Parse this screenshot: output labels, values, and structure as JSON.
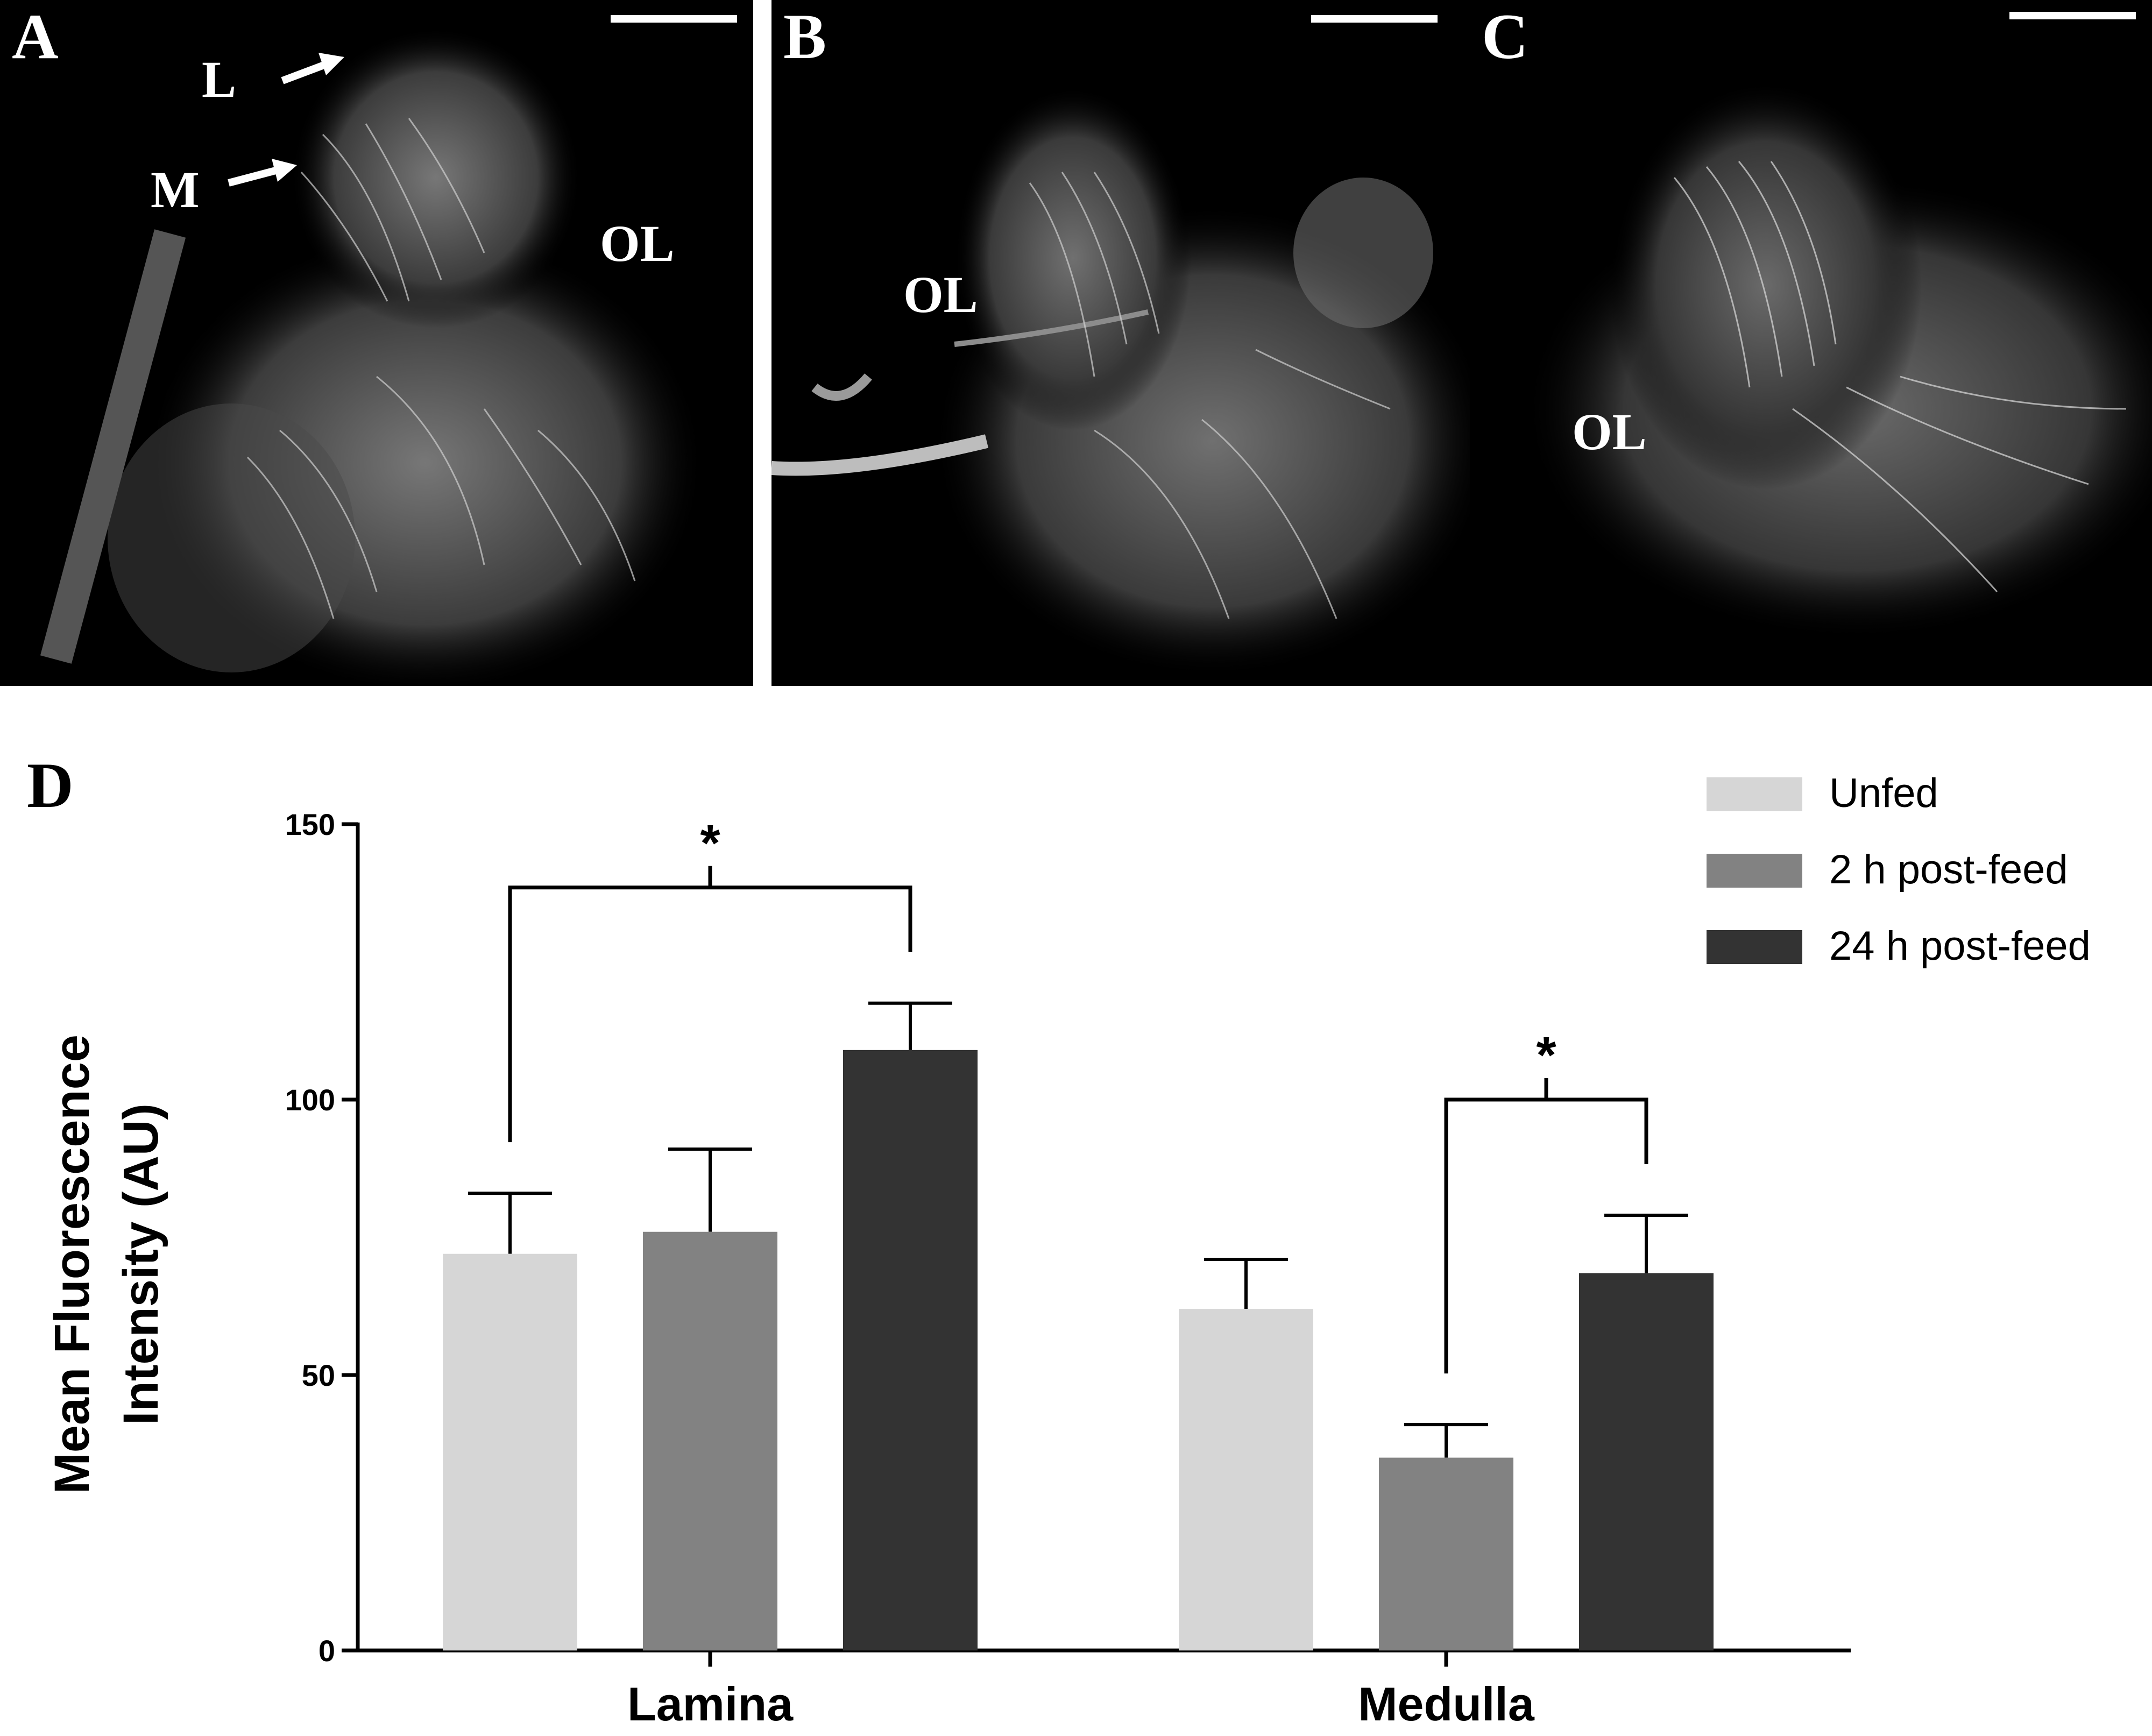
{
  "panels": [
    {
      "letter": "A",
      "labels": {
        "L": "L",
        "M": "M",
        "OL": "OL"
      }
    },
    {
      "letter": "B",
      "labels": {
        "OL": "OL"
      }
    },
    {
      "letter": "C",
      "labels": {
        "OL": "OL"
      }
    }
  ],
  "chart_panel_letter": "D",
  "colors": {
    "unfed": "#d6d6d6",
    "post2h": "#828282",
    "post24h": "#333333"
  },
  "chart_data": {
    "type": "bar",
    "categories": [
      "Lamina",
      "Medulla"
    ],
    "ylabel": "Mean Fluorescence Intensity (AU)",
    "ylabel_lines": [
      "Mean Fluorescence",
      "Intensity (AU)"
    ],
    "ylim": [
      0,
      150
    ],
    "yticks": [
      0,
      50,
      100,
      150
    ],
    "ytick_labels": [
      "0",
      "50",
      "100",
      "150"
    ],
    "legend_placement": "top-right",
    "series": [
      {
        "name": "Unfed",
        "values": [
          72,
          62
        ],
        "errors": [
          11,
          9
        ]
      },
      {
        "name": "2 h post-feed",
        "values": [
          76,
          35
        ],
        "errors": [
          15,
          6
        ]
      },
      {
        "name": "24 h post-feed",
        "values": [
          109,
          68.5
        ],
        "errors": [
          8.5,
          10.5
        ]
      }
    ],
    "significance": [
      {
        "category": 0,
        "from_series": 0,
        "to_series": 2,
        "label": "*"
      },
      {
        "category": 1,
        "from_series": 1,
        "to_series": 2,
        "label": "*"
      }
    ]
  }
}
